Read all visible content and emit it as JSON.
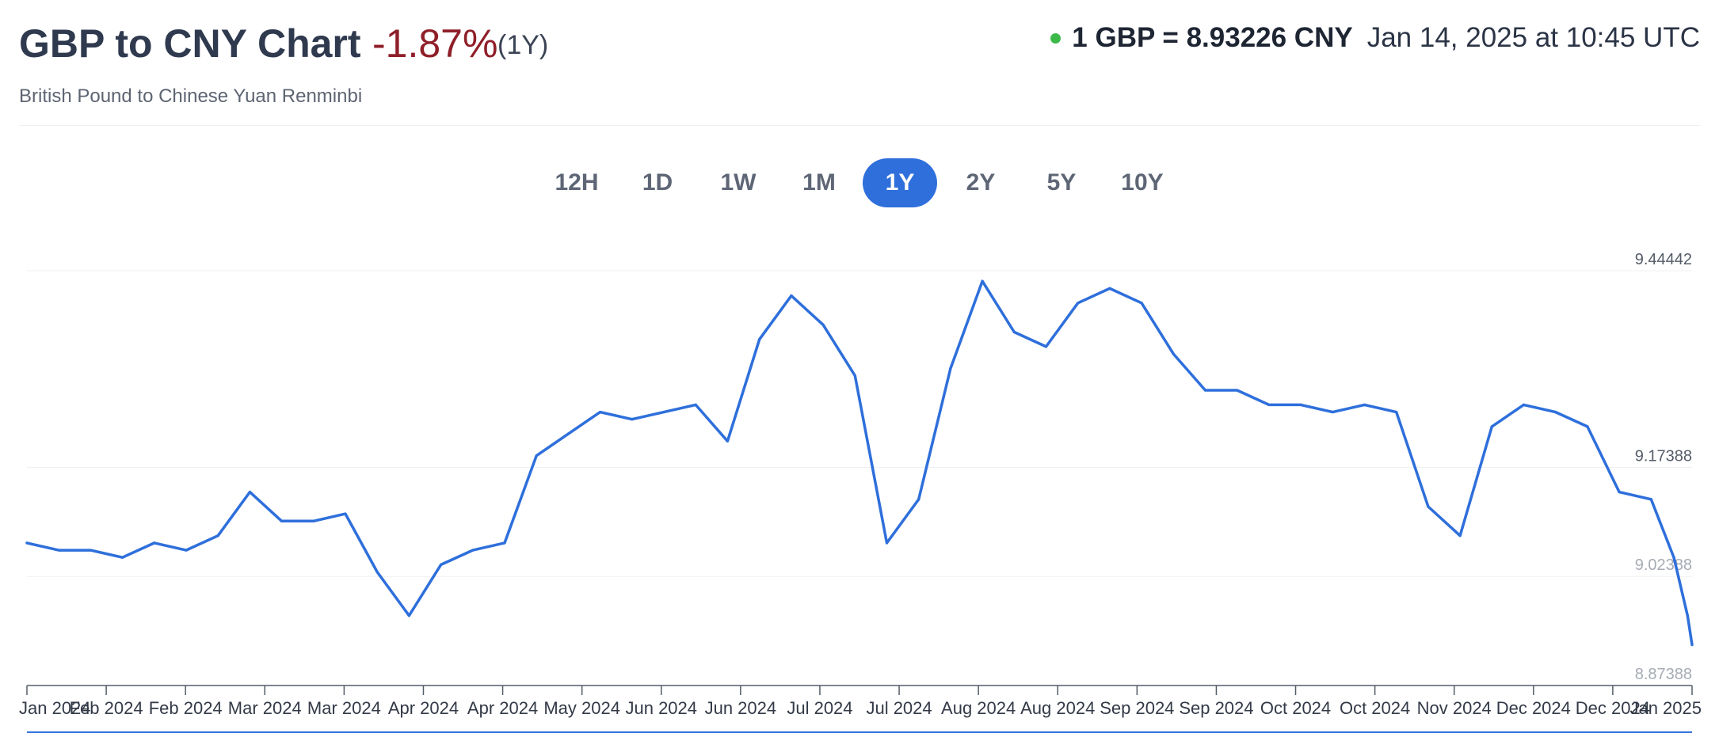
{
  "header": {
    "title": "GBP to CNY Chart",
    "change": "-1.87%",
    "period_tag": "(1Y)",
    "subtitle": "British Pound to Chinese Yuan Renminbi",
    "rate": "1 GBP = 8.93226 CNY",
    "timestamp": "Jan 14, 2025 at 10:45 UTC",
    "change_color": "#8f1f29",
    "live_dot_color": "#3db94a"
  },
  "periods": [
    {
      "label": "12H",
      "active": false
    },
    {
      "label": "1D",
      "active": false
    },
    {
      "label": "1W",
      "active": false
    },
    {
      "label": "1M",
      "active": false
    },
    {
      "label": "1Y",
      "active": true
    },
    {
      "label": "2Y",
      "active": false
    },
    {
      "label": "5Y",
      "active": false
    },
    {
      "label": "10Y",
      "active": false
    }
  ],
  "chart_data": {
    "type": "line",
    "series_color": "#2e6fdb",
    "y_ticks": [
      "9.44442",
      "9.17388",
      "9.02388",
      "8.87388"
    ],
    "ylim": [
      8.87388,
      9.44442
    ],
    "x_tick_labels": [
      "Jan 2024",
      "Feb 2024",
      "Feb 2024",
      "Mar 2024",
      "Mar 2024",
      "Apr 2024",
      "Apr 2024",
      "May 2024",
      "Jun 2024",
      "Jun 2024",
      "Jul 2024",
      "Jul 2024",
      "Aug 2024",
      "Aug 2024",
      "Sep 2024",
      "Sep 2024",
      "Oct 2024",
      "Oct 2024",
      "Nov 2024",
      "Dec 2024",
      "Dec 2024",
      "Jan 2025"
    ],
    "grid": true,
    "series": [
      {
        "x": [
          "2024-01-14",
          "2024-01-21",
          "2024-01-28",
          "2024-02-04",
          "2024-02-11",
          "2024-02-18",
          "2024-02-25",
          "2024-03-03",
          "2024-03-10",
          "2024-03-17",
          "2024-03-24",
          "2024-03-31",
          "2024-04-07",
          "2024-04-14",
          "2024-04-21",
          "2024-04-28",
          "2024-05-05",
          "2024-05-12",
          "2024-05-19",
          "2024-05-26",
          "2024-06-02",
          "2024-06-09",
          "2024-06-16",
          "2024-06-23",
          "2024-06-30",
          "2024-07-07",
          "2024-07-14",
          "2024-07-21",
          "2024-07-28",
          "2024-08-04",
          "2024-08-11",
          "2024-08-18",
          "2024-08-25",
          "2024-09-01",
          "2024-09-08",
          "2024-09-15",
          "2024-09-22",
          "2024-09-29",
          "2024-10-06",
          "2024-10-13",
          "2024-10-20",
          "2024-10-27",
          "2024-11-03",
          "2024-11-10",
          "2024-11-17",
          "2024-11-24",
          "2024-12-01",
          "2024-12-08",
          "2024-12-15",
          "2024-12-22",
          "2024-12-29",
          "2025-01-05",
          "2025-01-10",
          "2025-01-13",
          "2025-01-14"
        ],
        "values": [
          9.07,
          9.06,
          9.06,
          9.05,
          9.07,
          9.06,
          9.08,
          9.14,
          9.1,
          9.1,
          9.11,
          9.03,
          8.97,
          9.04,
          9.06,
          9.07,
          9.19,
          9.22,
          9.25,
          9.24,
          9.25,
          9.26,
          9.21,
          9.35,
          9.41,
          9.37,
          9.3,
          9.07,
          9.13,
          9.31,
          9.43,
          9.36,
          9.34,
          9.4,
          9.42,
          9.4,
          9.33,
          9.28,
          9.28,
          9.26,
          9.26,
          9.25,
          9.26,
          9.25,
          9.12,
          9.08,
          9.23,
          9.26,
          9.25,
          9.23,
          9.14,
          9.13,
          9.05,
          8.97,
          8.93
        ]
      }
    ]
  }
}
